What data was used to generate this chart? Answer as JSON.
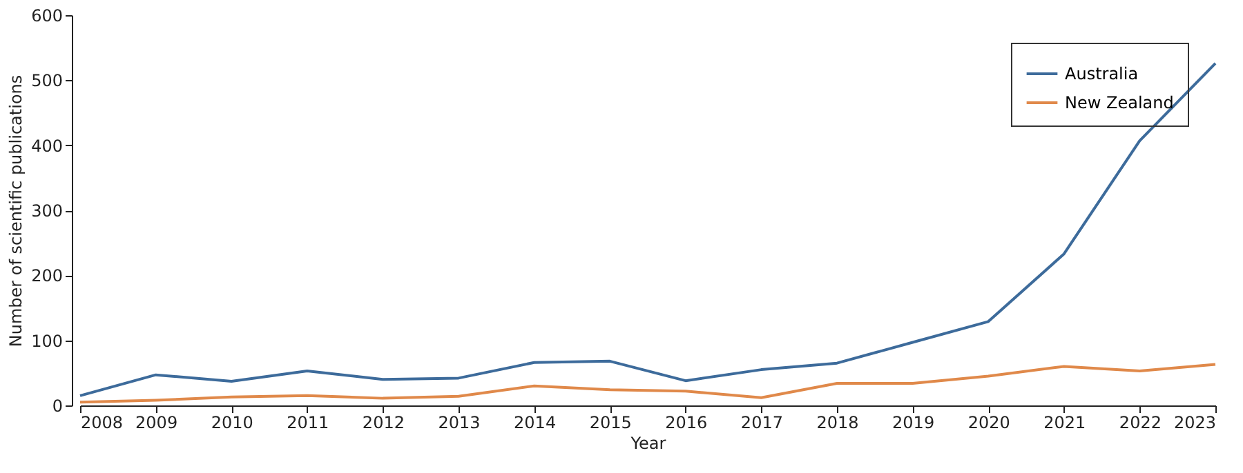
{
  "chart_data": {
    "type": "line",
    "xlabel": "Year",
    "ylabel": "Number of scientific publications",
    "categories": [
      "2008",
      "2009",
      "2010",
      "2011",
      "2012",
      "2013",
      "2014",
      "2015",
      "2016",
      "2017",
      "2018",
      "2019",
      "2020",
      "2021",
      "2022",
      "2023"
    ],
    "series": [
      {
        "name": "Australia",
        "color": "#3d6b9b",
        "values": [
          15,
          47,
          37,
          53,
          40,
          42,
          66,
          68,
          38,
          55,
          65,
          97,
          129,
          233,
          407,
          526
        ]
      },
      {
        "name": "New Zealand",
        "color": "#e0894a",
        "values": [
          5,
          8,
          13,
          15,
          11,
          14,
          30,
          24,
          22,
          12,
          34,
          34,
          45,
          60,
          53,
          63
        ]
      }
    ],
    "ylim": [
      0,
      600
    ],
    "yticks": [
      0,
      100,
      200,
      300,
      400,
      500,
      600
    ],
    "grid": false,
    "legend": "top right",
    "marker": "none",
    "line_style": "solid"
  }
}
